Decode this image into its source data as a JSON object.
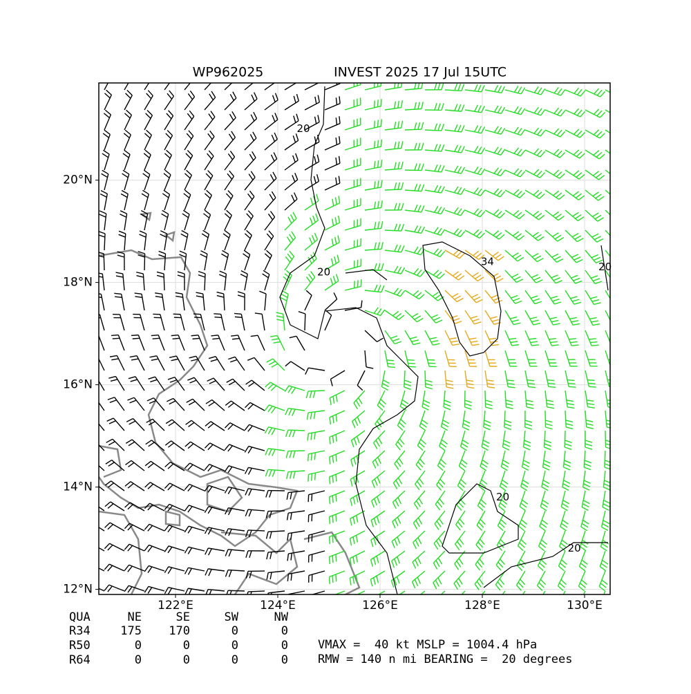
{
  "chart_data": {
    "type": "wind-barb-map",
    "title_left": "WP962025",
    "title_right": "INVEST 2025 17 Jul 15UTC",
    "xlim": [
      120.5,
      130.5
    ],
    "ylim": [
      11.9,
      21.9
    ],
    "xticks": [
      {
        "value": 122,
        "label": "122°E"
      },
      {
        "value": 124,
        "label": "124°E"
      },
      {
        "value": 126,
        "label": "126°E"
      },
      {
        "value": 128,
        "label": "128°E"
      },
      {
        "value": 130,
        "label": "130°E"
      }
    ],
    "yticks": [
      {
        "value": 12,
        "label": "12°N"
      },
      {
        "value": 14,
        "label": "14°N"
      },
      {
        "value": 16,
        "label": "16°N"
      },
      {
        "value": 18,
        "label": "18°N"
      },
      {
        "value": 20,
        "label": "20°N"
      }
    ],
    "grid": true,
    "storm_center": {
      "lon": 125.2,
      "lat": 16.8
    },
    "contours": [
      {
        "level": 20,
        "lon": 124.5,
        "lat": 21.0
      },
      {
        "level": 20,
        "lon": 124.9,
        "lat": 18.2
      },
      {
        "level": 34,
        "lon": 128.1,
        "lat": 18.4
      },
      {
        "level": 20,
        "lon": 130.4,
        "lat": 18.3
      },
      {
        "level": 20,
        "lon": 128.4,
        "lat": 13.8
      },
      {
        "level": 20,
        "lon": 129.8,
        "lat": 12.8
      }
    ]
  },
  "table": {
    "header": [
      "QUA",
      "NE",
      "SE",
      "SW",
      "NW"
    ],
    "rows": [
      [
        "R34",
        "175",
        "170",
        "0",
        "0"
      ],
      [
        "R50",
        "0",
        "0",
        "0",
        "0"
      ],
      [
        "R64",
        "0",
        "0",
        "0",
        "0"
      ]
    ]
  },
  "stats": [
    "VMAX =  40 kt MSLP = 1004.4 hPa",
    "RMW = 140 n mi BEARING =  20 degrees"
  ]
}
